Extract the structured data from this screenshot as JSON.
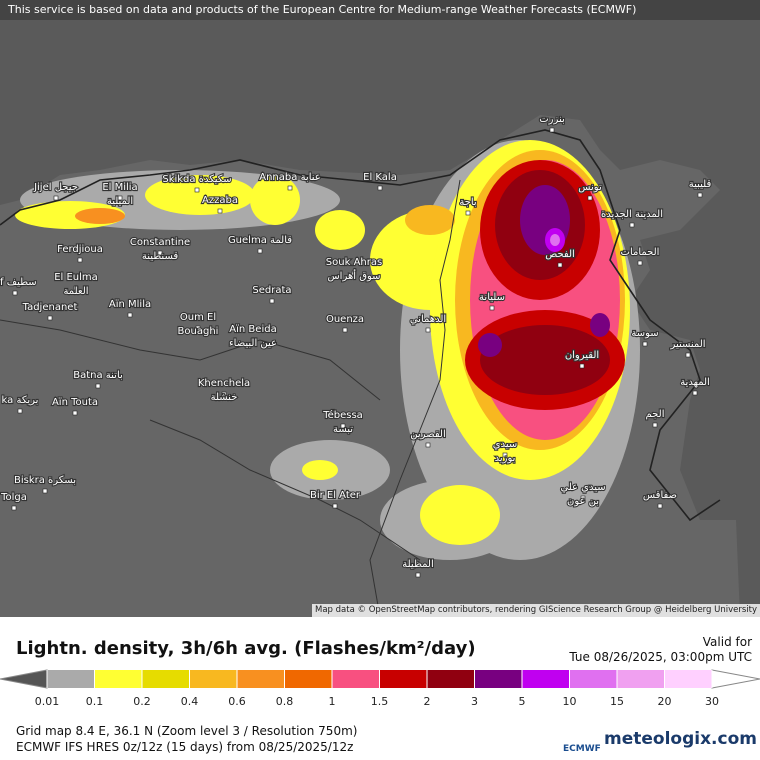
{
  "header": {
    "notice": "This service is based on data and products of the European Centre for Medium-range Weather Forecasts (ECMWF)"
  },
  "attribution": "Map data © OpenStreetMap contributors, rendering GIScience Research Group @ Heidelberg University",
  "places": [
    {
      "name": "Jijel جيجل"
    },
    {
      "name": "El Milia",
      "local": "الميلية"
    },
    {
      "name": "Skikda سكيكدة"
    },
    {
      "name": "Annaba عنابة"
    },
    {
      "name": "El Kala"
    },
    {
      "name": "Azzaba"
    },
    {
      "name": "Constantine",
      "local": "قسنطينة"
    },
    {
      "name": "Guelma قالمة"
    },
    {
      "name": "Ferdjioua"
    },
    {
      "name": "El Eulma",
      "local": "العلمة"
    },
    {
      "name": "tif سطيف"
    },
    {
      "name": "Tadjenanet"
    },
    {
      "name": "Aïn Mlila"
    },
    {
      "name": "Oum El",
      "local": "Bouaghi"
    },
    {
      "name": "Souk Ahras",
      "local": "سوق أهراس"
    },
    {
      "name": "Sedrata"
    },
    {
      "name": "Aïn Beida",
      "local": "عين البيضاء"
    },
    {
      "name": "Ouenza"
    },
    {
      "name": "Batna باتنة"
    },
    {
      "name": "Khenchela",
      "local": "خنشلة"
    },
    {
      "name": "Tébessa",
      "local": "تبسة"
    },
    {
      "name": "Aïn Touta"
    },
    {
      "name": "ka بريكة"
    },
    {
      "name": "Biskra بسكرة"
    },
    {
      "name": "Tolga"
    },
    {
      "name": "Bir El Ater"
    },
    {
      "name": "بنزرت"
    },
    {
      "name": "تونس"
    },
    {
      "name": "المدينة الجديدة"
    },
    {
      "name": "قليبية"
    },
    {
      "name": "الحمامات"
    },
    {
      "name": "الفحص"
    },
    {
      "name": "باجة"
    },
    {
      "name": "سليانة"
    },
    {
      "name": "الدهماني"
    },
    {
      "name": "سوسة"
    },
    {
      "name": "المنستير"
    },
    {
      "name": "القيروان"
    },
    {
      "name": "المهدية"
    },
    {
      "name": "الجم"
    },
    {
      "name": "القصرين"
    },
    {
      "name": "سيدي",
      "local": "بوزيد"
    },
    {
      "name": "سيدي علي",
      "local": "بن عون"
    },
    {
      "name": "صفاقس"
    },
    {
      "name": "المظيلة"
    }
  ],
  "legend": {
    "title": "Lightn. density, 3h/6h avg. (Flashes/km²/day)",
    "below_color": "#555555",
    "above_color": "#ffffff",
    "ticks": [
      0.01,
      0.1,
      0.2,
      0.4,
      0.6,
      0.8,
      1,
      1.5,
      2,
      3,
      5,
      10,
      15,
      20,
      30
    ],
    "colors": [
      "#aaaaaa",
      "#ffff33",
      "#e6dc00",
      "#f8b820",
      "#f89020",
      "#f06800",
      "#f85080",
      "#c80000",
      "#900010",
      "#780080",
      "#c000f0",
      "#e070f0",
      "#f0a0f0",
      "#ffd0ff"
    ]
  },
  "valid": {
    "label": "Valid for",
    "time": "Tue 08/26/2025, 03:00pm UTC"
  },
  "footer": {
    "grid": "Grid map 8.4 E, 36.1 N (Zoom level 3 / Resolution 750m)",
    "model": "ECMWF IFS HRES 0z/12z (15 days) from 08/25/2025/12z",
    "ecmwf": "ECMWF",
    "brand": "meteologix.com"
  }
}
